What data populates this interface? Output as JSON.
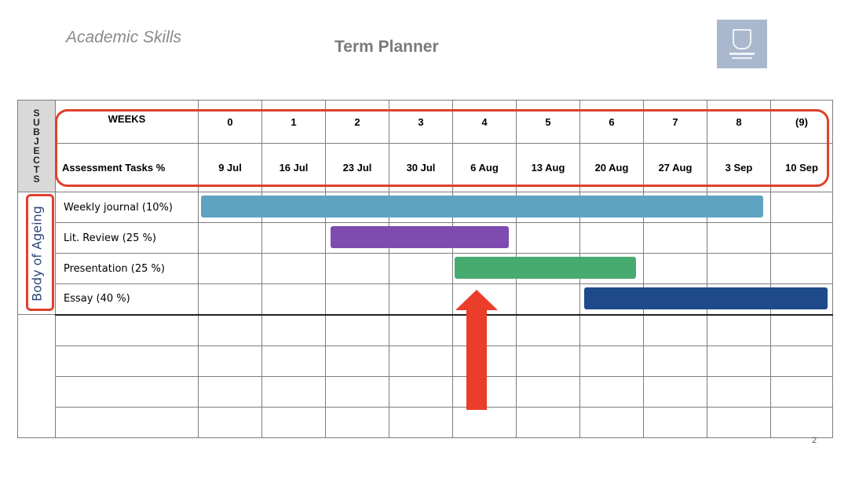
{
  "header": {
    "left_label": "Academic Skills",
    "title": "Term Planner"
  },
  "table": {
    "subjects_label": [
      "S",
      "U",
      "B",
      "J",
      "E",
      "C",
      "T",
      "S"
    ],
    "weeks_label": "WEEKS",
    "assessment_label": "Assessment Tasks %",
    "weeks": [
      "0",
      "1",
      "2",
      "3",
      "4",
      "5",
      "6",
      "7",
      "8",
      "(9)"
    ],
    "dates": [
      "9 Jul",
      "16 Jul",
      "23 Jul",
      "30 Jul",
      "6 Aug",
      "13 Aug",
      "20 Aug",
      "27 Aug",
      "3 Sep",
      "10 Sep"
    ],
    "subject": "Body of Ageing",
    "tasks": [
      {
        "label": "Weekly journal (10%)",
        "start_week": 0,
        "end_week": 8,
        "color": "#5fa3c2"
      },
      {
        "label": "Lit. Review (25 %)",
        "start_week": 2,
        "end_week": 4,
        "color": "#7e4bb0"
      },
      {
        "label": "Presentation (25 %)",
        "start_week": 4,
        "end_week": 6,
        "color": "#47ab6f"
      },
      {
        "label": "Essay (40 %)",
        "start_week": 6,
        "end_week": 9,
        "color": "#1e4a8c"
      }
    ]
  },
  "colors": {
    "highlight": "#e0402a",
    "arrow": "#ea3e2a",
    "logo_bg": "#a9b8cc"
  },
  "page_number": "2"
}
